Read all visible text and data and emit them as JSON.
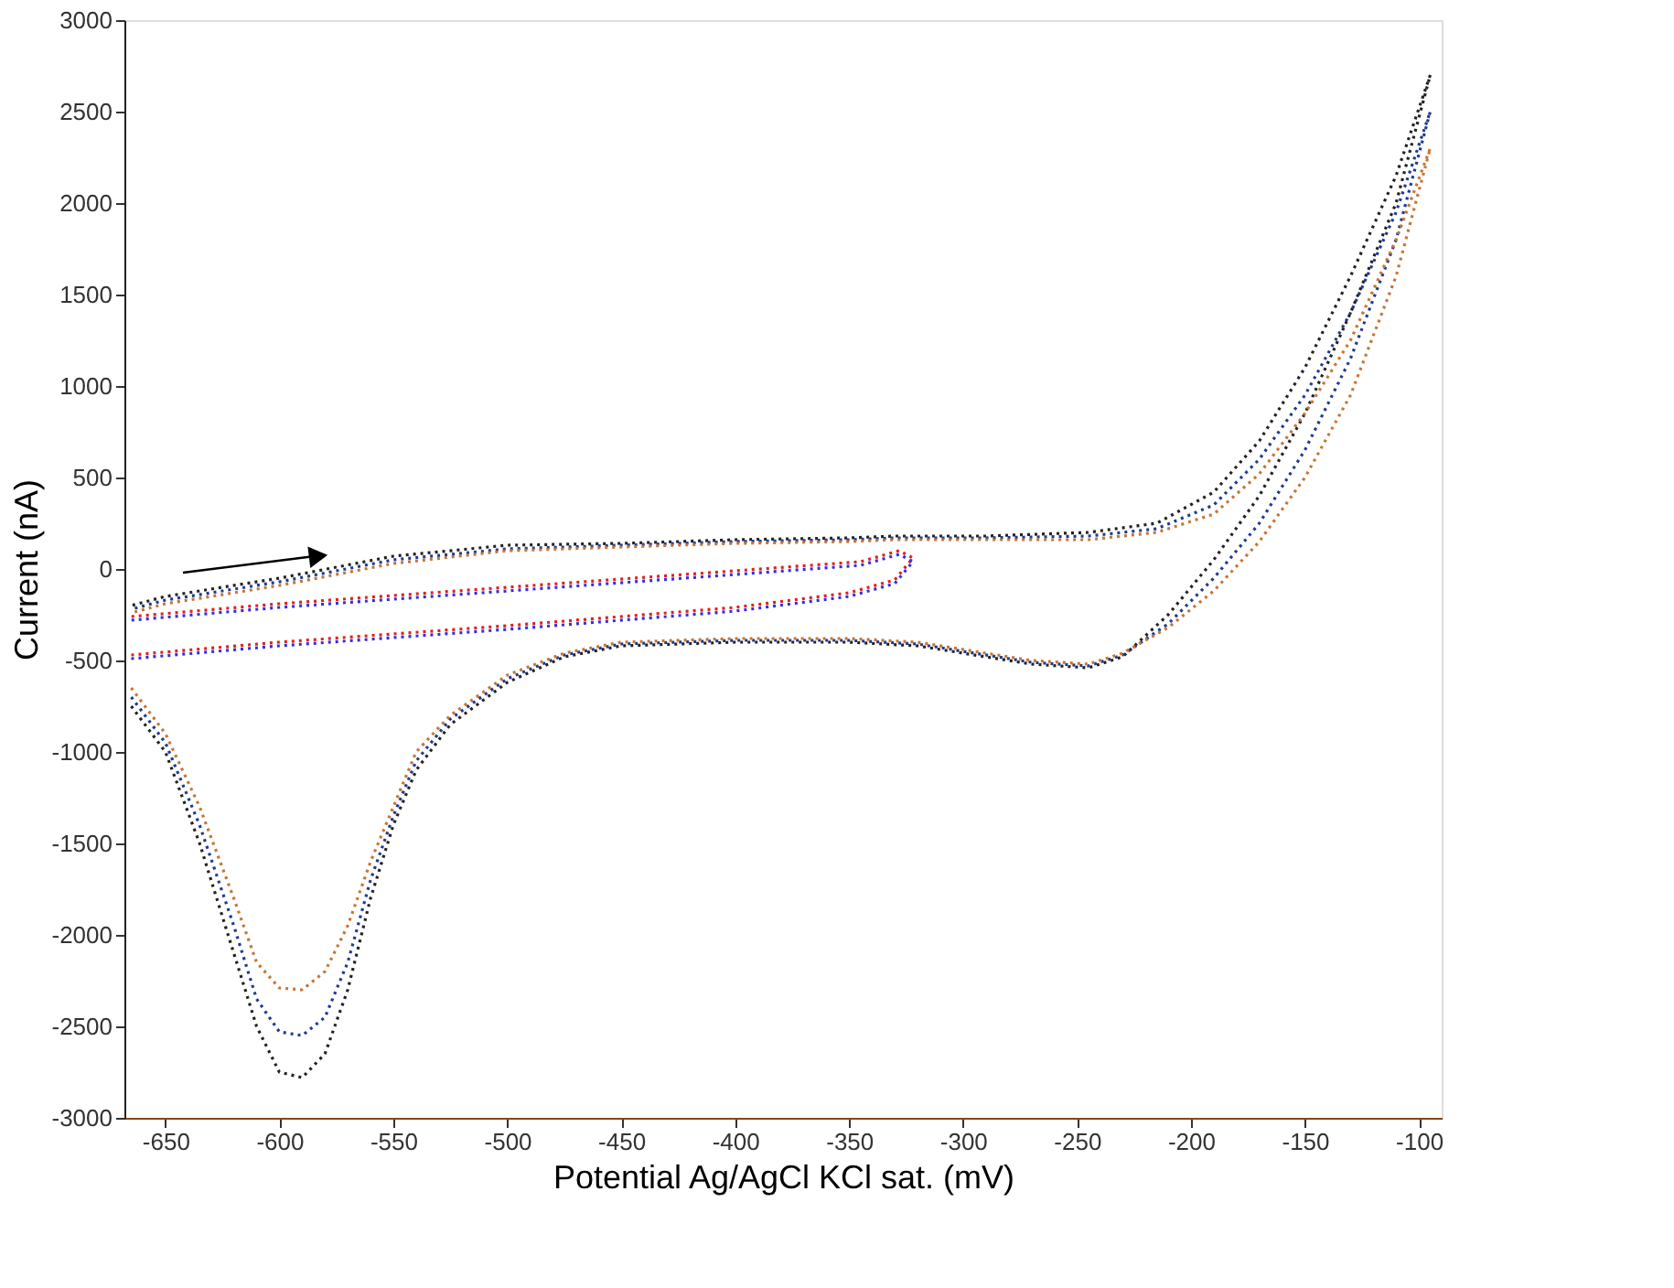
{
  "chart_data": {
    "type": "line",
    "xlabel": "Potential Ag/AgCl KCl sat. (mV)",
    "ylabel": "Current (nA)",
    "xlim": [
      -668,
      -90
    ],
    "xticks": [
      -650,
      -600,
      -550,
      -500,
      -450,
      -400,
      -350,
      -300,
      -250,
      -200,
      -150,
      -100
    ],
    "ylim": [
      -3000,
      3000
    ],
    "yticks": [
      -3000,
      -2500,
      -2000,
      -1500,
      -1000,
      -500,
      0,
      500,
      1000,
      1500,
      2000,
      2500,
      3000
    ],
    "grid": false,
    "legend": false,
    "line_style": "dotted",
    "series": [
      {
        "color": "#222222",
        "x": [
          -665,
          -650,
          -635,
          -620,
          -610,
          -600,
          -590,
          -580,
          -570,
          -560,
          -550,
          -540,
          -525,
          -500,
          -475,
          -450,
          -400,
          -350,
          -320,
          -300,
          -270,
          -245,
          -230,
          -210,
          -190,
          -170,
          -150,
          -130,
          -110,
          -95,
          -110,
          -130,
          -150,
          -170,
          -190,
          -215,
          -245,
          -290,
          -330,
          -350,
          -400,
          -450,
          -500,
          -550,
          -600,
          -650,
          -665
        ],
        "values": [
          -750,
          -1000,
          -1500,
          -2100,
          -2500,
          -2750,
          -2780,
          -2650,
          -2300,
          -1800,
          -1400,
          -1100,
          -850,
          -620,
          -480,
          -420,
          -400,
          -400,
          -420,
          -460,
          -520,
          -540,
          -480,
          -250,
          50,
          400,
          850,
          1400,
          2000,
          2700,
          2150,
          1600,
          1100,
          700,
          420,
          250,
          200,
          180,
          180,
          170,
          160,
          140,
          130,
          70,
          -50,
          -150,
          -200
        ]
      },
      {
        "color": "#1f3a93",
        "x": [
          -665,
          -650,
          -635,
          -620,
          -610,
          -600,
          -590,
          -580,
          -570,
          -560,
          -550,
          -540,
          -525,
          -500,
          -475,
          -450,
          -400,
          -350,
          -320,
          -300,
          -270,
          -245,
          -230,
          -210,
          -190,
          -170,
          -150,
          -130,
          -110,
          -95,
          -110,
          -130,
          -150,
          -170,
          -190,
          -215,
          -245,
          -290,
          -330,
          -350,
          -400,
          -450,
          -500,
          -550,
          -600,
          -650,
          -665
        ],
        "values": [
          -700,
          -950,
          -1400,
          -1950,
          -2350,
          -2530,
          -2550,
          -2450,
          -2150,
          -1700,
          -1350,
          -1050,
          -820,
          -600,
          -470,
          -410,
          -390,
          -390,
          -410,
          -450,
          -510,
          -530,
          -470,
          -300,
          -50,
          250,
          650,
          1150,
          1800,
          2500,
          1950,
          1400,
          950,
          600,
          350,
          220,
          180,
          170,
          170,
          160,
          150,
          130,
          110,
          50,
          -70,
          -170,
          -220
        ]
      },
      {
        "color": "#c87533",
        "x": [
          -665,
          -650,
          -635,
          -620,
          -610,
          -600,
          -590,
          -580,
          -570,
          -560,
          -550,
          -540,
          -525,
          -500,
          -475,
          -450,
          -400,
          -350,
          -320,
          -300,
          -270,
          -245,
          -230,
          -210,
          -190,
          -170,
          -150,
          -130,
          -110,
          -95,
          -110,
          -130,
          -150,
          -170,
          -190,
          -215,
          -245,
          -290,
          -330,
          -350,
          -400,
          -450,
          -500,
          -550,
          -600,
          -650,
          -665
        ],
        "values": [
          -650,
          -900,
          -1300,
          -1800,
          -2150,
          -2290,
          -2300,
          -2200,
          -1950,
          -1600,
          -1300,
          -1000,
          -800,
          -580,
          -460,
          -400,
          -380,
          -380,
          -400,
          -440,
          -500,
          -520,
          -460,
          -320,
          -120,
          150,
          500,
          950,
          1600,
          2300,
          1800,
          1250,
          850,
          520,
          300,
          200,
          160,
          160,
          160,
          150,
          140,
          120,
          100,
          30,
          -90,
          -190,
          -240
        ]
      },
      {
        "color": "#e02020",
        "x": [
          -665,
          -600,
          -500,
          -400,
          -350,
          -330,
          -322,
          -328,
          -345,
          -400,
          -500,
          -600,
          -665
        ],
        "values": [
          -470,
          -400,
          -310,
          -210,
          -130,
          -60,
          60,
          100,
          40,
          -10,
          -100,
          -190,
          -260
        ]
      },
      {
        "color": "#3030e0",
        "x": [
          -665,
          -600,
          -500,
          -400,
          -350,
          -330,
          -322,
          -328,
          -345,
          -400,
          -500,
          -600,
          -665
        ],
        "values": [
          -490,
          -420,
          -330,
          -230,
          -150,
          -80,
          40,
          80,
          20,
          -30,
          -120,
          -210,
          -280
        ]
      }
    ]
  }
}
